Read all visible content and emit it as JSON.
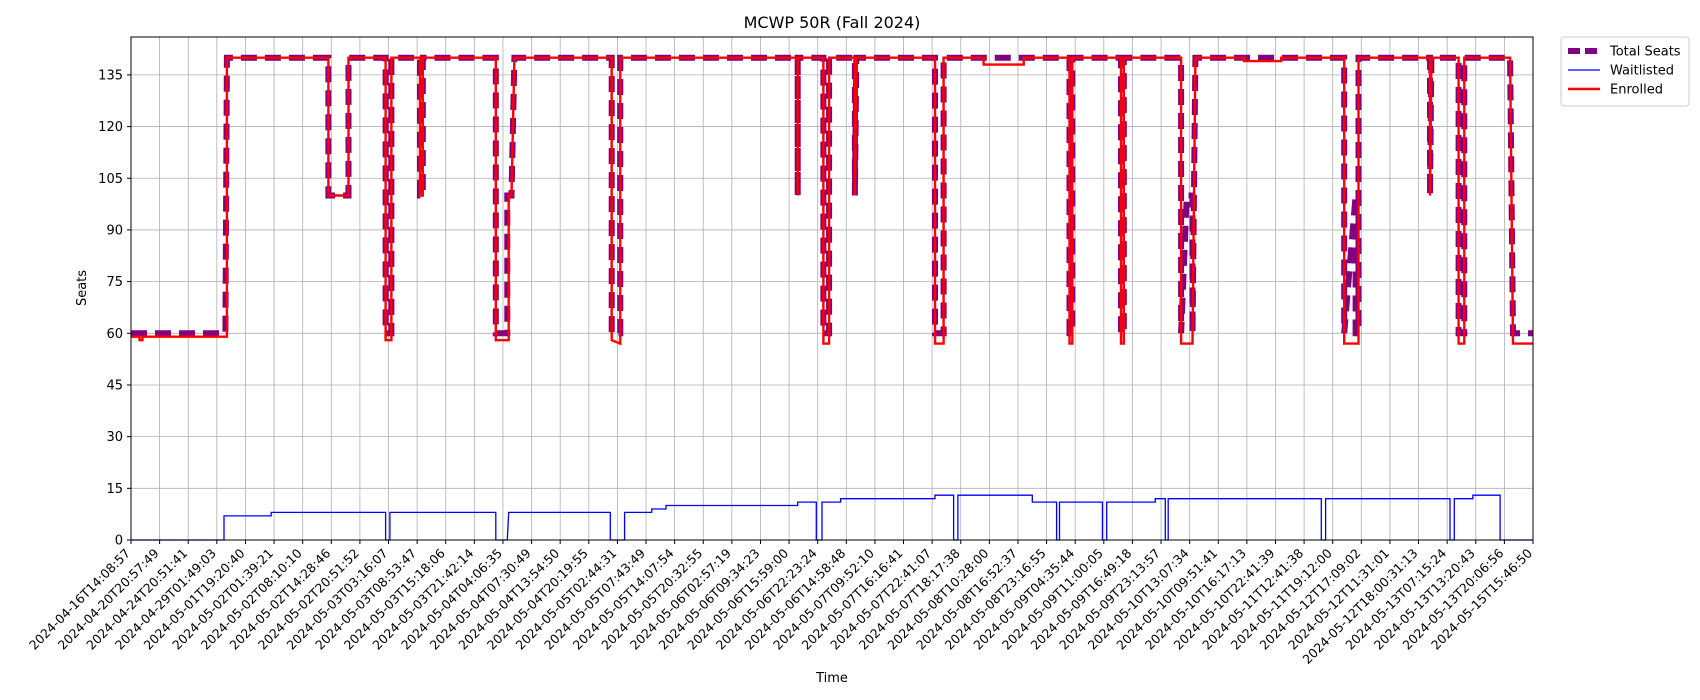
{
  "chart_data": {
    "type": "line",
    "title": "MCWP 50R (Fall 2024)",
    "xlabel": "Time",
    "ylabel": "Seats",
    "ylim": [
      0,
      146
    ],
    "yticks": [
      0,
      15,
      30,
      45,
      60,
      75,
      90,
      105,
      120,
      135
    ],
    "grid": true,
    "legend_position": "outside-top-right",
    "x_ticks": [
      "2024-04-16T14:08:57",
      "2024-04-20T20:57:49",
      "2024-04-24T20:51:41",
      "2024-04-29T01:49:03",
      "2024-05-01T19:20:40",
      "2024-05-02T01:39:21",
      "2024-05-02T08:10:10",
      "2024-05-02T14:28:46",
      "2024-05-02T20:51:52",
      "2024-05-03T03:16:07",
      "2024-05-03T08:53:47",
      "2024-05-03T15:18:06",
      "2024-05-03T21:42:14",
      "2024-05-04T04:06:35",
      "2024-05-04T07:30:49",
      "2024-05-04T13:54:50",
      "2024-05-04T20:19:55",
      "2024-05-05T02:44:31",
      "2024-05-05T07:43:49",
      "2024-05-05T14:07:54",
      "2024-05-05T20:32:55",
      "2024-05-06T02:57:19",
      "2024-05-06T09:34:23",
      "2024-05-06T15:59:00",
      "2024-05-06T22:23:24",
      "2024-05-06T14:58:48",
      "2024-05-07T09:52:10",
      "2024-05-07T16:16:41",
      "2024-05-07T22:41:07",
      "2024-05-07T18:17:38",
      "2024-05-08T10:28:00",
      "2024-05-08T16:52:37",
      "2024-05-08T23:16:55",
      "2024-05-09T04:35:44",
      "2024-05-09T11:00:05",
      "2024-05-09T16:49:18",
      "2024-05-09T23:13:57",
      "2024-05-10T13:07:34",
      "2024-05-10T09:51:41",
      "2024-05-10T16:17:13",
      "2024-05-10T22:41:39",
      "2024-05-11T12:41:38",
      "2024-05-11T19:12:00",
      "2024-05-12T17:09:02",
      "2024-05-12T11:31:01",
      "2024-05-12T18:00:31:13",
      "2024-05-13T07:15:24",
      "2024-05-13T13:20:43",
      "2024-05-13T20:06:56",
      "2024-05-15T15:46:50"
    ],
    "x_range": [
      0,
      49
    ],
    "series": [
      {
        "name": "Total Seats",
        "color": "#800080",
        "style": "dashed-thick",
        "points": [
          [
            0,
            60
          ],
          [
            3.3,
            60
          ],
          [
            3.3,
            60
          ],
          [
            3.35,
            140
          ],
          [
            6.9,
            140
          ],
          [
            6.9,
            100
          ],
          [
            7.6,
            100
          ],
          [
            7.6,
            140
          ],
          [
            8.9,
            140
          ],
          [
            8.9,
            60
          ],
          [
            9.1,
            60
          ],
          [
            9.1,
            140
          ],
          [
            10.1,
            140
          ],
          [
            10.1,
            100
          ],
          [
            10.2,
            100
          ],
          [
            10.2,
            140
          ],
          [
            12.75,
            140
          ],
          [
            12.75,
            60
          ],
          [
            13.15,
            60
          ],
          [
            13.15,
            100
          ],
          [
            13.3,
            100
          ],
          [
            13.4,
            140
          ],
          [
            16.8,
            140
          ],
          [
            16.8,
            60
          ],
          [
            17.1,
            60
          ],
          [
            17.1,
            140
          ],
          [
            23.3,
            140
          ],
          [
            23.3,
            100
          ],
          [
            23.3,
            140
          ],
          [
            24.2,
            140
          ],
          [
            24.2,
            60
          ],
          [
            24.4,
            60
          ],
          [
            24.4,
            140
          ],
          [
            25.3,
            140
          ],
          [
            25.3,
            100
          ],
          [
            25.35,
            140
          ],
          [
            28.1,
            140
          ],
          [
            28.1,
            60
          ],
          [
            28.4,
            60
          ],
          [
            28.4,
            140
          ],
          [
            32.8,
            140
          ],
          [
            32.8,
            60
          ],
          [
            32.9,
            60
          ],
          [
            32.9,
            140
          ],
          [
            34.6,
            140
          ],
          [
            34.6,
            60
          ],
          [
            34.7,
            60
          ],
          [
            34.7,
            140
          ],
          [
            36.7,
            140
          ],
          [
            36.7,
            60
          ],
          [
            36.9,
            100
          ],
          [
            37.1,
            100
          ],
          [
            37.1,
            60
          ],
          [
            37.2,
            140
          ],
          [
            42.4,
            140
          ],
          [
            42.4,
            60
          ],
          [
            42.8,
            100
          ],
          [
            42.8,
            60
          ],
          [
            42.9,
            60
          ],
          [
            42.9,
            140
          ],
          [
            45.4,
            140
          ],
          [
            45.4,
            100
          ],
          [
            45.45,
            140
          ],
          [
            46.4,
            140
          ],
          [
            46.4,
            60
          ],
          [
            46.6,
            60
          ],
          [
            46.6,
            140
          ],
          [
            48.2,
            140
          ],
          [
            48.3,
            60
          ],
          [
            49,
            60
          ]
        ]
      },
      {
        "name": "Waitlisted",
        "color": "#0000ff",
        "style": "thin",
        "points": [
          [
            0,
            0
          ],
          [
            3.25,
            0
          ],
          [
            3.25,
            7
          ],
          [
            4.9,
            7
          ],
          [
            4.9,
            8
          ],
          [
            8.9,
            8
          ],
          [
            8.9,
            0
          ],
          [
            9.05,
            0
          ],
          [
            9.05,
            8
          ],
          [
            12.75,
            8
          ],
          [
            12.75,
            0
          ],
          [
            13.15,
            0
          ],
          [
            13.2,
            8
          ],
          [
            16.75,
            8
          ],
          [
            16.75,
            0
          ],
          [
            17.25,
            0
          ],
          [
            17.25,
            8
          ],
          [
            18.2,
            8
          ],
          [
            18.2,
            9
          ],
          [
            18.7,
            9
          ],
          [
            18.7,
            10
          ],
          [
            23.3,
            10
          ],
          [
            23.3,
            11
          ],
          [
            23.95,
            11
          ],
          [
            23.95,
            0
          ],
          [
            24.15,
            0
          ],
          [
            24.15,
            11
          ],
          [
            24.8,
            11
          ],
          [
            24.8,
            12
          ],
          [
            28.1,
            12
          ],
          [
            28.1,
            13
          ],
          [
            28.75,
            13
          ],
          [
            28.75,
            0
          ],
          [
            28.9,
            0
          ],
          [
            28.9,
            13
          ],
          [
            31.5,
            13
          ],
          [
            31.5,
            11
          ],
          [
            32.35,
            11
          ],
          [
            32.35,
            0
          ],
          [
            32.45,
            0
          ],
          [
            32.45,
            11
          ],
          [
            33.95,
            11
          ],
          [
            33.95,
            0
          ],
          [
            34.1,
            0
          ],
          [
            34.1,
            11
          ],
          [
            35.8,
            11
          ],
          [
            35.8,
            12
          ],
          [
            36.15,
            12
          ],
          [
            36.15,
            0
          ],
          [
            36.25,
            0
          ],
          [
            36.25,
            12
          ],
          [
            41.6,
            12
          ],
          [
            41.6,
            0
          ],
          [
            41.75,
            0
          ],
          [
            41.75,
            12
          ],
          [
            46.1,
            12
          ],
          [
            46.1,
            0
          ],
          [
            46.25,
            0
          ],
          [
            46.25,
            12
          ],
          [
            46.9,
            12
          ],
          [
            46.9,
            13
          ],
          [
            47.85,
            13
          ],
          [
            47.85,
            0
          ],
          [
            49,
            0
          ]
        ]
      },
      {
        "name": "Enrolled",
        "color": "#ff0000",
        "style": "solid",
        "points": [
          [
            0,
            59
          ],
          [
            0.3,
            59
          ],
          [
            0.3,
            58
          ],
          [
            0.4,
            58
          ],
          [
            0.4,
            59
          ],
          [
            3.35,
            59
          ],
          [
            3.35,
            140
          ],
          [
            6.9,
            140
          ],
          [
            6.9,
            100
          ],
          [
            7.6,
            100
          ],
          [
            7.6,
            140
          ],
          [
            8.9,
            140
          ],
          [
            8.9,
            58
          ],
          [
            9.1,
            58
          ],
          [
            9.1,
            140
          ],
          [
            10.1,
            140
          ],
          [
            10.1,
            100
          ],
          [
            10.2,
            100
          ],
          [
            10.2,
            140
          ],
          [
            12.75,
            140
          ],
          [
            12.75,
            58
          ],
          [
            13.2,
            58
          ],
          [
            13.2,
            100
          ],
          [
            13.3,
            100
          ],
          [
            13.4,
            140
          ],
          [
            16.8,
            140
          ],
          [
            16.8,
            58
          ],
          [
            17.1,
            57
          ],
          [
            17.1,
            140
          ],
          [
            23.3,
            140
          ],
          [
            23.3,
            100
          ],
          [
            23.3,
            140
          ],
          [
            24.2,
            140
          ],
          [
            24.2,
            57
          ],
          [
            24.4,
            57
          ],
          [
            24.4,
            140
          ],
          [
            25.3,
            140
          ],
          [
            25.3,
            100
          ],
          [
            25.35,
            140
          ],
          [
            28.1,
            140
          ],
          [
            28.1,
            57
          ],
          [
            28.4,
            57
          ],
          [
            28.4,
            140
          ],
          [
            29.8,
            140
          ],
          [
            29.8,
            138
          ],
          [
            31.2,
            138
          ],
          [
            31.2,
            140
          ],
          [
            32.8,
            140
          ],
          [
            32.8,
            57
          ],
          [
            32.9,
            57
          ],
          [
            32.9,
            140
          ],
          [
            34.6,
            140
          ],
          [
            34.6,
            57
          ],
          [
            34.7,
            57
          ],
          [
            34.7,
            140
          ],
          [
            36.7,
            140
          ],
          [
            36.7,
            57
          ],
          [
            37.1,
            57
          ],
          [
            37.2,
            140
          ],
          [
            38.9,
            140
          ],
          [
            38.9,
            139
          ],
          [
            40.2,
            139
          ],
          [
            40.2,
            140
          ],
          [
            42.4,
            140
          ],
          [
            42.4,
            57
          ],
          [
            42.9,
            57
          ],
          [
            42.9,
            140
          ],
          [
            45.4,
            140
          ],
          [
            45.4,
            100
          ],
          [
            45.45,
            140
          ],
          [
            46.4,
            140
          ],
          [
            46.4,
            57
          ],
          [
            46.6,
            57
          ],
          [
            46.6,
            140
          ],
          [
            48.2,
            140
          ],
          [
            48.3,
            57
          ],
          [
            49,
            57
          ]
        ]
      }
    ]
  }
}
